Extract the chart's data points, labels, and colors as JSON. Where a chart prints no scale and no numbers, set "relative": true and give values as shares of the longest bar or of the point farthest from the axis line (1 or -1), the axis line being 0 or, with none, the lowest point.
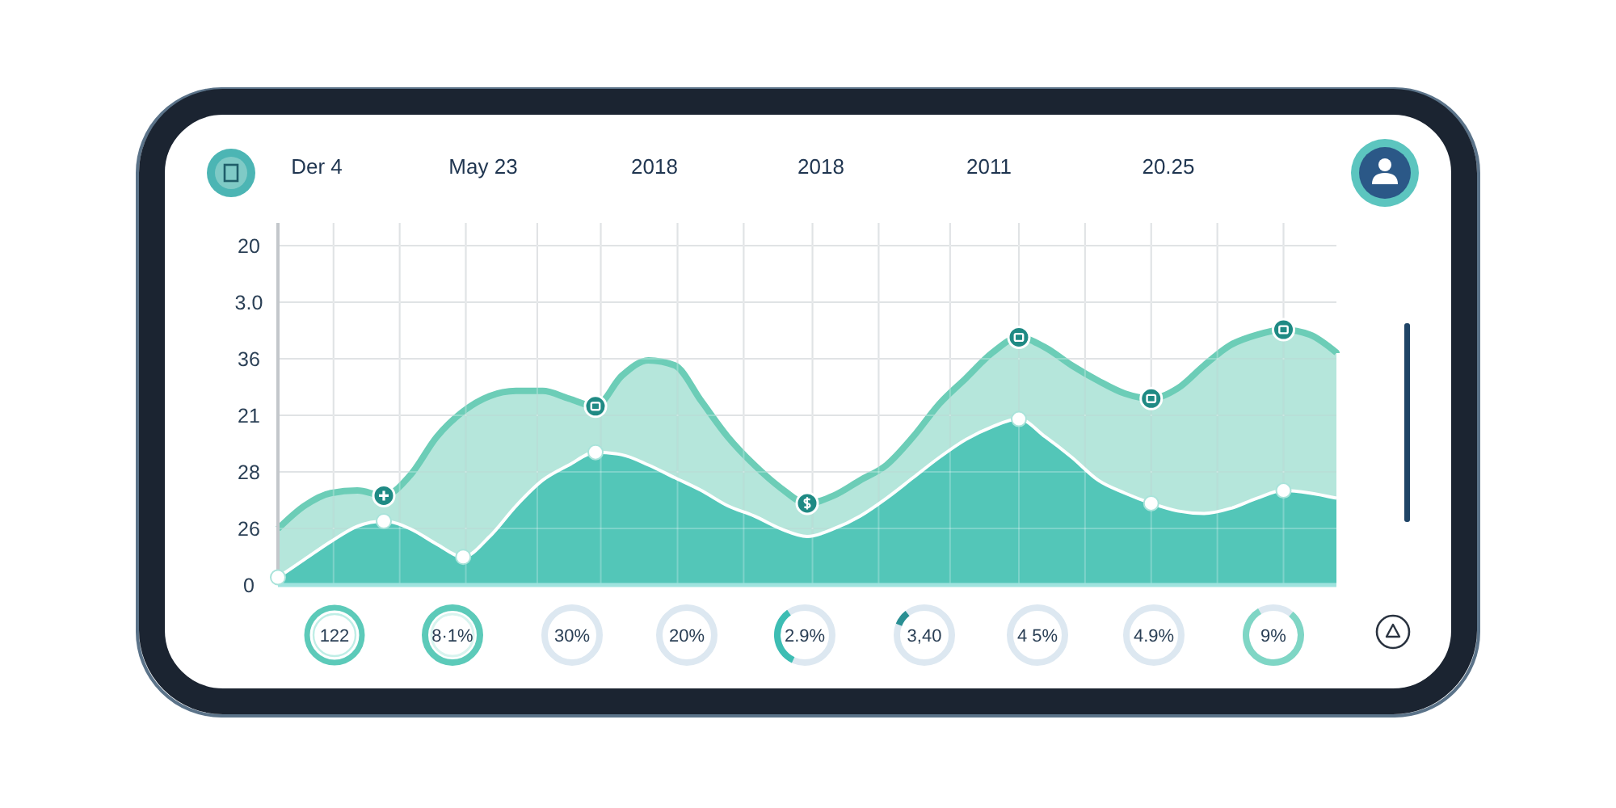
{
  "chart_data": {
    "type": "area",
    "relative": true,
    "grid": true,
    "annotations": [
      "Der 4",
      "May 23",
      "2018",
      "2018",
      "2011",
      "20.25",
      "20",
      "3.0",
      "36",
      "21",
      "28",
      "26",
      "0",
      "122",
      "8·1%",
      "30%",
      "20%",
      "2.9%",
      "3,40",
      "4 5%",
      "4.9%",
      "9%"
    ],
    "categories": [
      null,
      null,
      null,
      null,
      null,
      null,
      null,
      null,
      null,
      null,
      null,
      null,
      null,
      null,
      null,
      null,
      null,
      null,
      null,
      null,
      null,
      null,
      null,
      null,
      null,
      null,
      null,
      null,
      null,
      null,
      null,
      null,
      null,
      null,
      null,
      null,
      null,
      null,
      null,
      null,
      null
    ],
    "series": [
      {
        "color": "#6ccdb7",
        "values": [
          0.22,
          0.31,
          0.36,
          0.37,
          0.35,
          0.43,
          0.58,
          0.68,
          0.74,
          0.76,
          0.76,
          0.73,
          0.7,
          0.82,
          0.88,
          0.86,
          0.72,
          0.58,
          0.47,
          0.38,
          0.32,
          0.35,
          0.41,
          0.47,
          0.58,
          0.71,
          0.81,
          0.91,
          0.97,
          0.93,
          0.86,
          0.8,
          0.75,
          0.73,
          0.77,
          0.86,
          0.94,
          0.98,
          1,
          0.98,
          0.91
        ]
      },
      {
        "color": "#4ec4b6",
        "values": [
          0.03,
          0.1,
          0.17,
          0.23,
          0.25,
          0.22,
          0.16,
          0.11,
          0.19,
          0.31,
          0.41,
          0.47,
          0.52,
          0.51,
          0.47,
          0.42,
          0.37,
          0.31,
          0.27,
          0.22,
          0.19,
          0.22,
          0.27,
          0.34,
          0.42,
          0.5,
          0.57,
          0.62,
          0.65,
          0.58,
          0.5,
          0.41,
          0.36,
          0.32,
          0.29,
          0.28,
          0.3,
          0.34,
          0.37,
          0.36,
          0.34
        ]
      }
    ]
  }
}
